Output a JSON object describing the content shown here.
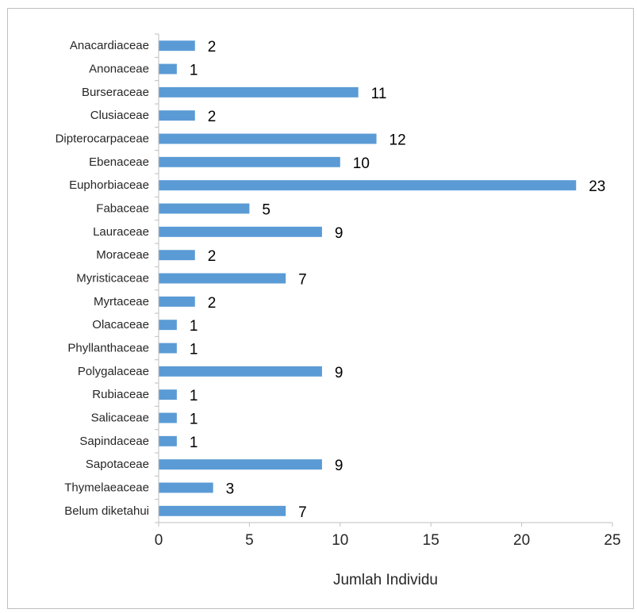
{
  "chart_data": {
    "type": "bar",
    "orientation": "horizontal",
    "categories": [
      "Anacardiaceae",
      "Anonaceae",
      "Burseraceae",
      "Clusiaceae",
      "Dipterocarpaceae",
      "Ebenaceae",
      "Euphorbiaceae",
      "Fabaceae",
      "Lauraceae",
      "Moraceae",
      "Myristicaceae",
      "Myrtaceae",
      "Olacaceae",
      "Phyllanthaceae",
      "Polygalaceae",
      "Rubiaceae",
      "Salicaceae",
      "Sapindaceae",
      "Sapotaceae",
      "Thymelaeaceae",
      "Belum diketahui"
    ],
    "values": [
      2,
      1,
      11,
      2,
      12,
      10,
      23,
      5,
      9,
      2,
      7,
      2,
      1,
      1,
      9,
      1,
      1,
      1,
      9,
      3,
      7
    ],
    "xlabel": "Jumlah Individu",
    "ylabel": "",
    "xlim": [
      0,
      25
    ],
    "xticks": [
      0,
      5,
      10,
      15,
      20,
      25
    ],
    "grid": false,
    "data_labels": true,
    "bar_color": "#5b9bd5",
    "axis_color": "#bfbfbf"
  }
}
